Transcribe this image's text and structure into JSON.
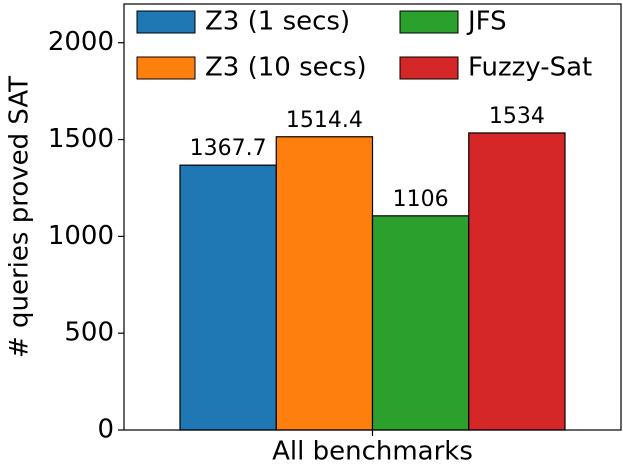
{
  "chart_data": {
    "type": "bar",
    "ylabel": "# queries proved SAT",
    "categories": [
      "All benchmarks"
    ],
    "series": [
      {
        "name": "Z3 (1 secs)",
        "color": "#1f77b4",
        "values": [
          1367.7
        ]
      },
      {
        "name": "Z3 (10 secs)",
        "color": "#ff7f0e",
        "values": [
          1514.4
        ]
      },
      {
        "name": "JFS",
        "color": "#2ca02c",
        "values": [
          1106
        ]
      },
      {
        "name": "Fuzzy-Sat",
        "color": "#d62728",
        "values": [
          1534
        ]
      }
    ],
    "ylim": [
      0,
      2200
    ],
    "yticks": [
      0,
      500,
      1000,
      1500,
      2000
    ],
    "legend": "upper left"
  }
}
